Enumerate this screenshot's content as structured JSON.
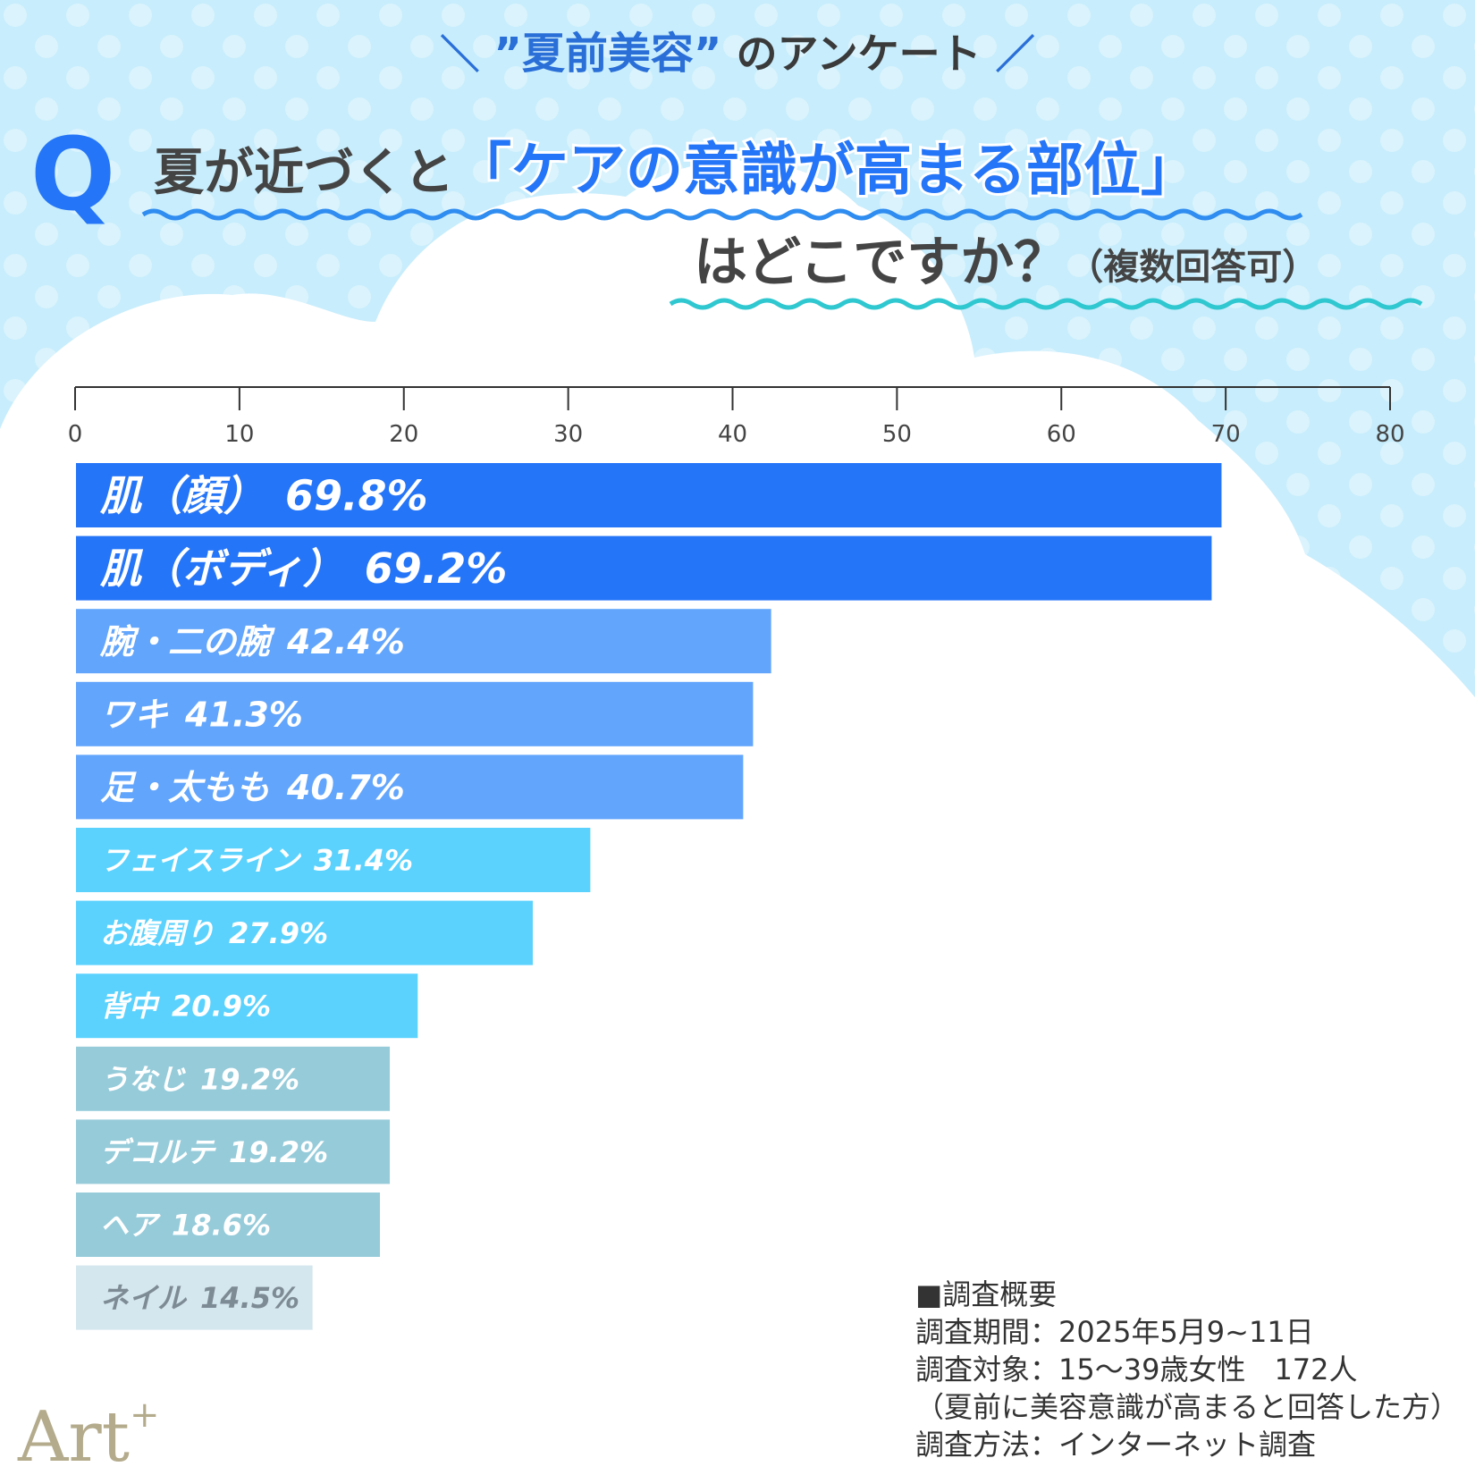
{
  "chart_data": {
    "type": "bar",
    "orientation": "horizontal",
    "subtitle": [
      "＼",
      "”夏前美容”",
      "のアンケート",
      "／"
    ],
    "question_mark": "Q",
    "title": [
      "夏が近づくと",
      "「ケアの意識が高まる部位」",
      "はどこですか？",
      "（複数回答可）"
    ],
    "categories": [
      "肌（顔）",
      "肌（ボディ）",
      "腕・二の腕",
      "ワキ",
      "足・太もも",
      "フェイスライン",
      "お腹周り",
      "背中",
      "うなじ",
      "デコルテ",
      "ヘア",
      "ネイル"
    ],
    "values": [
      69.8,
      69.2,
      42.4,
      41.3,
      40.7,
      31.4,
      27.9,
      20.9,
      19.2,
      19.2,
      18.6,
      14.5
    ],
    "value_labels": [
      "69.8%",
      "69.2%",
      "42.4%",
      "41.3%",
      "40.7%",
      "31.4%",
      "27.9%",
      "20.9%",
      "19.2%",
      "19.2%",
      "18.6%",
      "14.5%"
    ],
    "colors": [
      "#2575f8",
      "#2575f8",
      "#62a5fc",
      "#62a5fc",
      "#62a5fc",
      "#5bd2fe",
      "#5bd2fe",
      "#5bd2fe",
      "#96cbda",
      "#96cbda",
      "#96cbda",
      "#d4e6ee"
    ],
    "xlim": [
      0,
      80
    ],
    "xticks": [
      0,
      10,
      20,
      30,
      40,
      50,
      60,
      70,
      80
    ],
    "notes": [
      "■調査概要",
      "調査期間：2025年5月9~11日",
      "調査対象：15～39歳女性　172人",
      "（夏前に美容意識が高まると回答した方）",
      "調査方法：インターネット調査"
    ],
    "logo": "Art",
    "logo_sup": "+"
  }
}
